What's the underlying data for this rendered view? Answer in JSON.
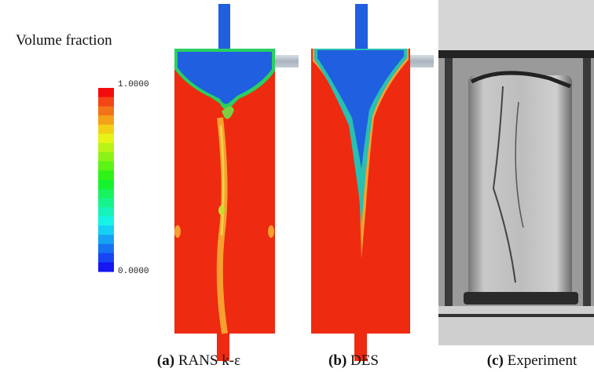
{
  "colorbar": {
    "title": "Volume fraction",
    "max_label": "1.0000",
    "min_label": "0.0000"
  },
  "panels": [
    {
      "tag": "(a)",
      "caption": "RANS k-ε"
    },
    {
      "tag": "(b)",
      "caption": "DES"
    },
    {
      "tag": "(c)",
      "caption": "Experiment"
    }
  ]
}
